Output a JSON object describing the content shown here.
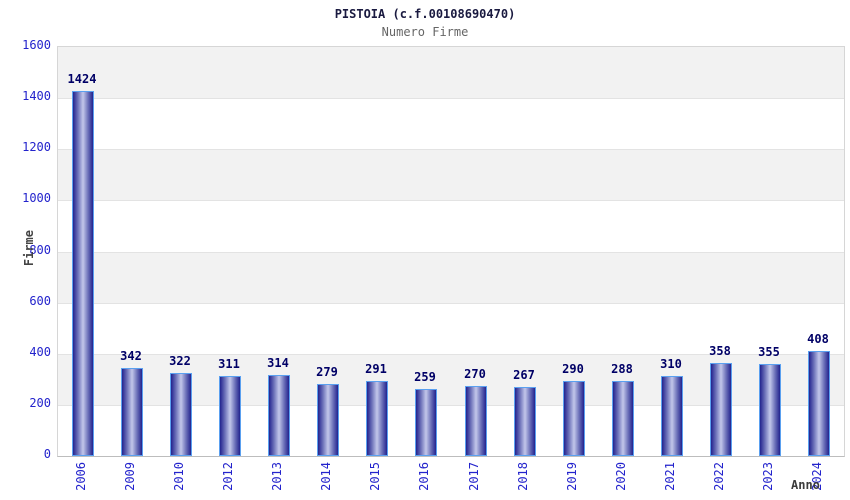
{
  "header": {
    "title": "PISTOIA (c.f.00108690470)",
    "subtitle": "Numero Firme"
  },
  "chart_data": {
    "type": "bar",
    "title": "PISTOIA (c.f.00108690470)",
    "subtitle": "Numero Firme",
    "xlabel": "Anno",
    "ylabel": "Firme",
    "categories": [
      "2006",
      "2009",
      "2010",
      "2012",
      "2013",
      "2014",
      "2015",
      "2016",
      "2017",
      "2018",
      "2019",
      "2020",
      "2021",
      "2022",
      "2023",
      "2024"
    ],
    "values": [
      1424,
      342,
      322,
      311,
      314,
      279,
      291,
      259,
      270,
      267,
      290,
      288,
      310,
      358,
      355,
      408
    ],
    "ylim": [
      0,
      1600
    ],
    "ytick_step": 200,
    "ytick_labels": [
      "0",
      "200",
      "400",
      "600",
      "800",
      "1000",
      "1200",
      "1400",
      "1600"
    ],
    "grid": "horizontal-bands-alternating",
    "legend": "none",
    "colors": {
      "bar_edge_dark": "#23238e",
      "bar_mid": "#6468b4",
      "bar_center_light": "#c2c7ea",
      "bar_border": "#5aa0f0",
      "band_gray": "#f2f2f2",
      "band_white": "#ffffff",
      "gridline": "#e3e3e3",
      "plot_border": "#d6d6d6",
      "tick_label_blue": "#2323cc",
      "value_label_navy": "#000066",
      "title_color": "#1a1a40",
      "subtitle_color": "#666666",
      "axis_title_gray": "#444444"
    }
  }
}
